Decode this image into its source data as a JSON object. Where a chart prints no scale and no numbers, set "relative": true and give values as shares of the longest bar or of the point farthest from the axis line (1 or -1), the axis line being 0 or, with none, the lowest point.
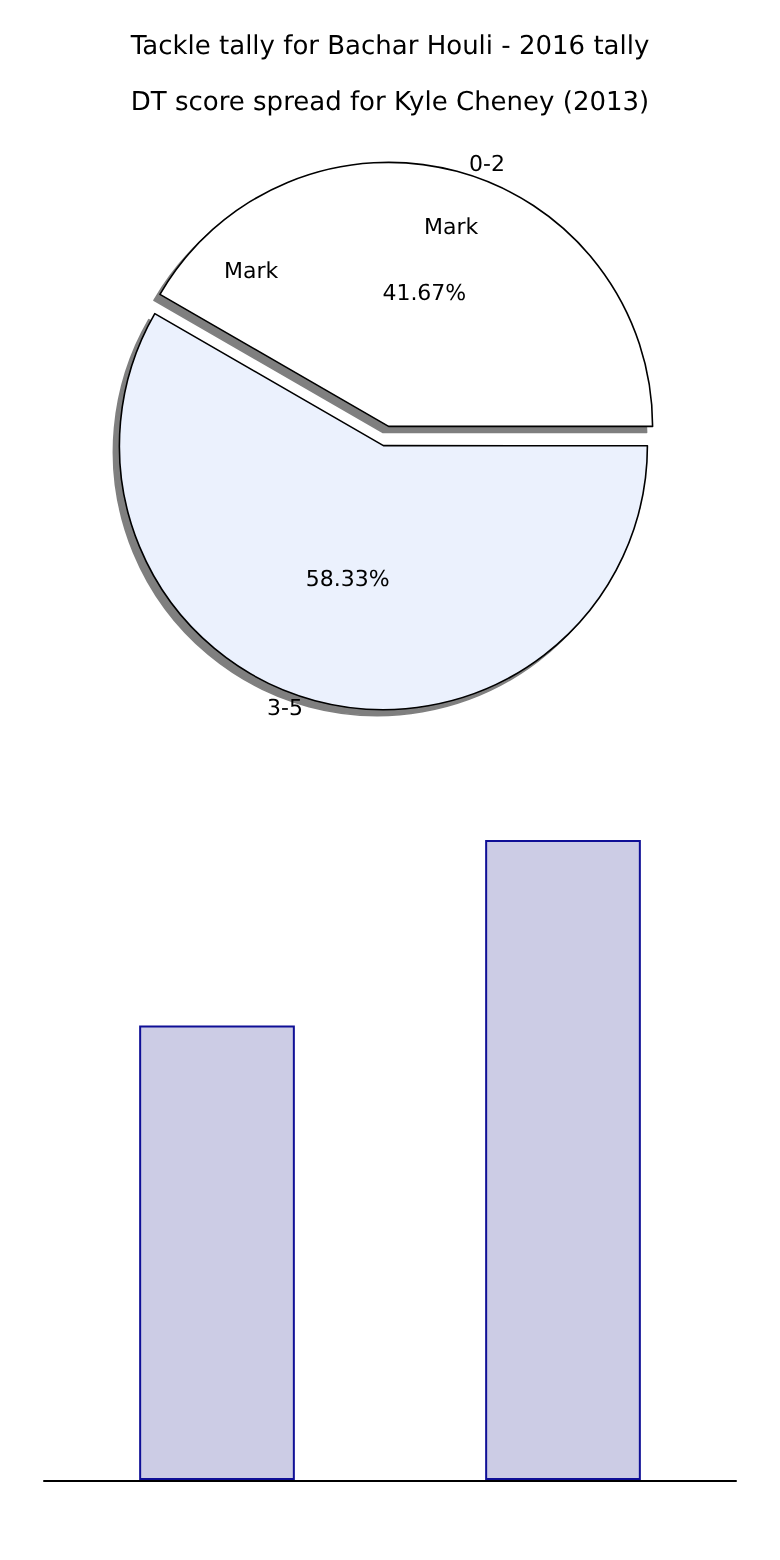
{
  "chart_data": [
    {
      "type": "bar",
      "title": "Tackle tally for Bachar Houli - 2016 tally",
      "categories": [
        null,
        null
      ],
      "values": [
        0.71,
        1
      ],
      "relative": true,
      "color": "#cccce5"
    },
    {
      "type": "pie",
      "title": "DT score spread for Kyle Cheney (2013)",
      "categories": [
        "0-2",
        "3-5"
      ],
      "values": [
        41.67,
        58.33
      ],
      "colors": [
        "#ffffff",
        "#ebf1fd"
      ],
      "value_labels": [
        "41.67%",
        "58.33%"
      ],
      "annotations": [
        "Mark",
        "Mark"
      ]
    }
  ]
}
